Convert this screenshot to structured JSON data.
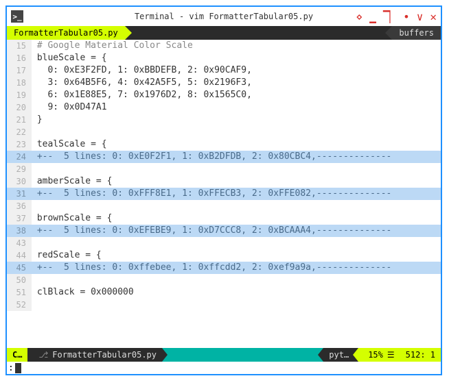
{
  "window": {
    "title": "Terminal - vim FormatterTabular05.py"
  },
  "tabs": {
    "active": "FormatterTabular05.py",
    "buffers_label": "buffers"
  },
  "status": {
    "mode": "C…",
    "file": "FormatterTabular05.py",
    "filetype": "pyt…",
    "percent": "15%",
    "position": "512: 1",
    "hamburger": "☰"
  },
  "cmd": {
    "prompt": ":"
  },
  "colors": {
    "accent": "#d4ff00",
    "teal": "#00b3a4",
    "dark": "#2b2b2b",
    "fold_bg": "#bcd9f5",
    "fold_fg": "#4a6b8a",
    "border": "#1e90ff",
    "winctrl": "#d9302c"
  },
  "lines": [
    {
      "n": 15,
      "fold": false,
      "cls": "comment",
      "text": " # Google Material Color Scale"
    },
    {
      "n": 16,
      "fold": false,
      "cls": "",
      "text": " blueScale = {"
    },
    {
      "n": 17,
      "fold": false,
      "cls": "",
      "text": "   0: 0xE3F2FD, 1: 0xBBDEFB, 2: 0x90CAF9,"
    },
    {
      "n": 18,
      "fold": false,
      "cls": "",
      "text": "   3: 0x64B5F6, 4: 0x42A5F5, 5: 0x2196F3,"
    },
    {
      "n": 19,
      "fold": false,
      "cls": "",
      "text": "   6: 0x1E88E5, 7: 0x1976D2, 8: 0x1565C0,"
    },
    {
      "n": 20,
      "fold": false,
      "cls": "",
      "text": "   9: 0x0D47A1"
    },
    {
      "n": 21,
      "fold": false,
      "cls": "",
      "text": " }"
    },
    {
      "n": 22,
      "fold": false,
      "cls": "",
      "text": ""
    },
    {
      "n": 23,
      "fold": false,
      "cls": "",
      "text": " tealScale = {"
    },
    {
      "n": 24,
      "fold": true,
      "cls": "",
      "text": " +--  5 lines: 0: 0xE0F2F1, 1: 0xB2DFDB, 2: 0x80CBC4,--------------"
    },
    {
      "n": 29,
      "fold": false,
      "cls": "",
      "text": ""
    },
    {
      "n": 30,
      "fold": false,
      "cls": "",
      "text": " amberScale = {"
    },
    {
      "n": 31,
      "fold": true,
      "cls": "",
      "text": " +--  5 lines: 0: 0xFFF8E1, 1: 0xFFECB3, 2: 0xFFE082,--------------"
    },
    {
      "n": 36,
      "fold": false,
      "cls": "",
      "text": ""
    },
    {
      "n": 37,
      "fold": false,
      "cls": "",
      "text": " brownScale = {"
    },
    {
      "n": 38,
      "fold": true,
      "cls": "",
      "text": " +--  5 lines: 0: 0xEFEBE9, 1: 0xD7CCC8, 2: 0xBCAAA4,--------------"
    },
    {
      "n": 43,
      "fold": false,
      "cls": "",
      "text": ""
    },
    {
      "n": 44,
      "fold": false,
      "cls": "",
      "text": " redScale = {"
    },
    {
      "n": 45,
      "fold": true,
      "cls": "",
      "text": " +--  5 lines: 0: 0xffebee, 1: 0xffcdd2, 2: 0xef9a9a,--------------"
    },
    {
      "n": 50,
      "fold": false,
      "cls": "",
      "text": ""
    },
    {
      "n": 51,
      "fold": false,
      "cls": "",
      "text": " clBlack = 0x000000"
    },
    {
      "n": 52,
      "fold": false,
      "cls": "",
      "text": ""
    }
  ]
}
